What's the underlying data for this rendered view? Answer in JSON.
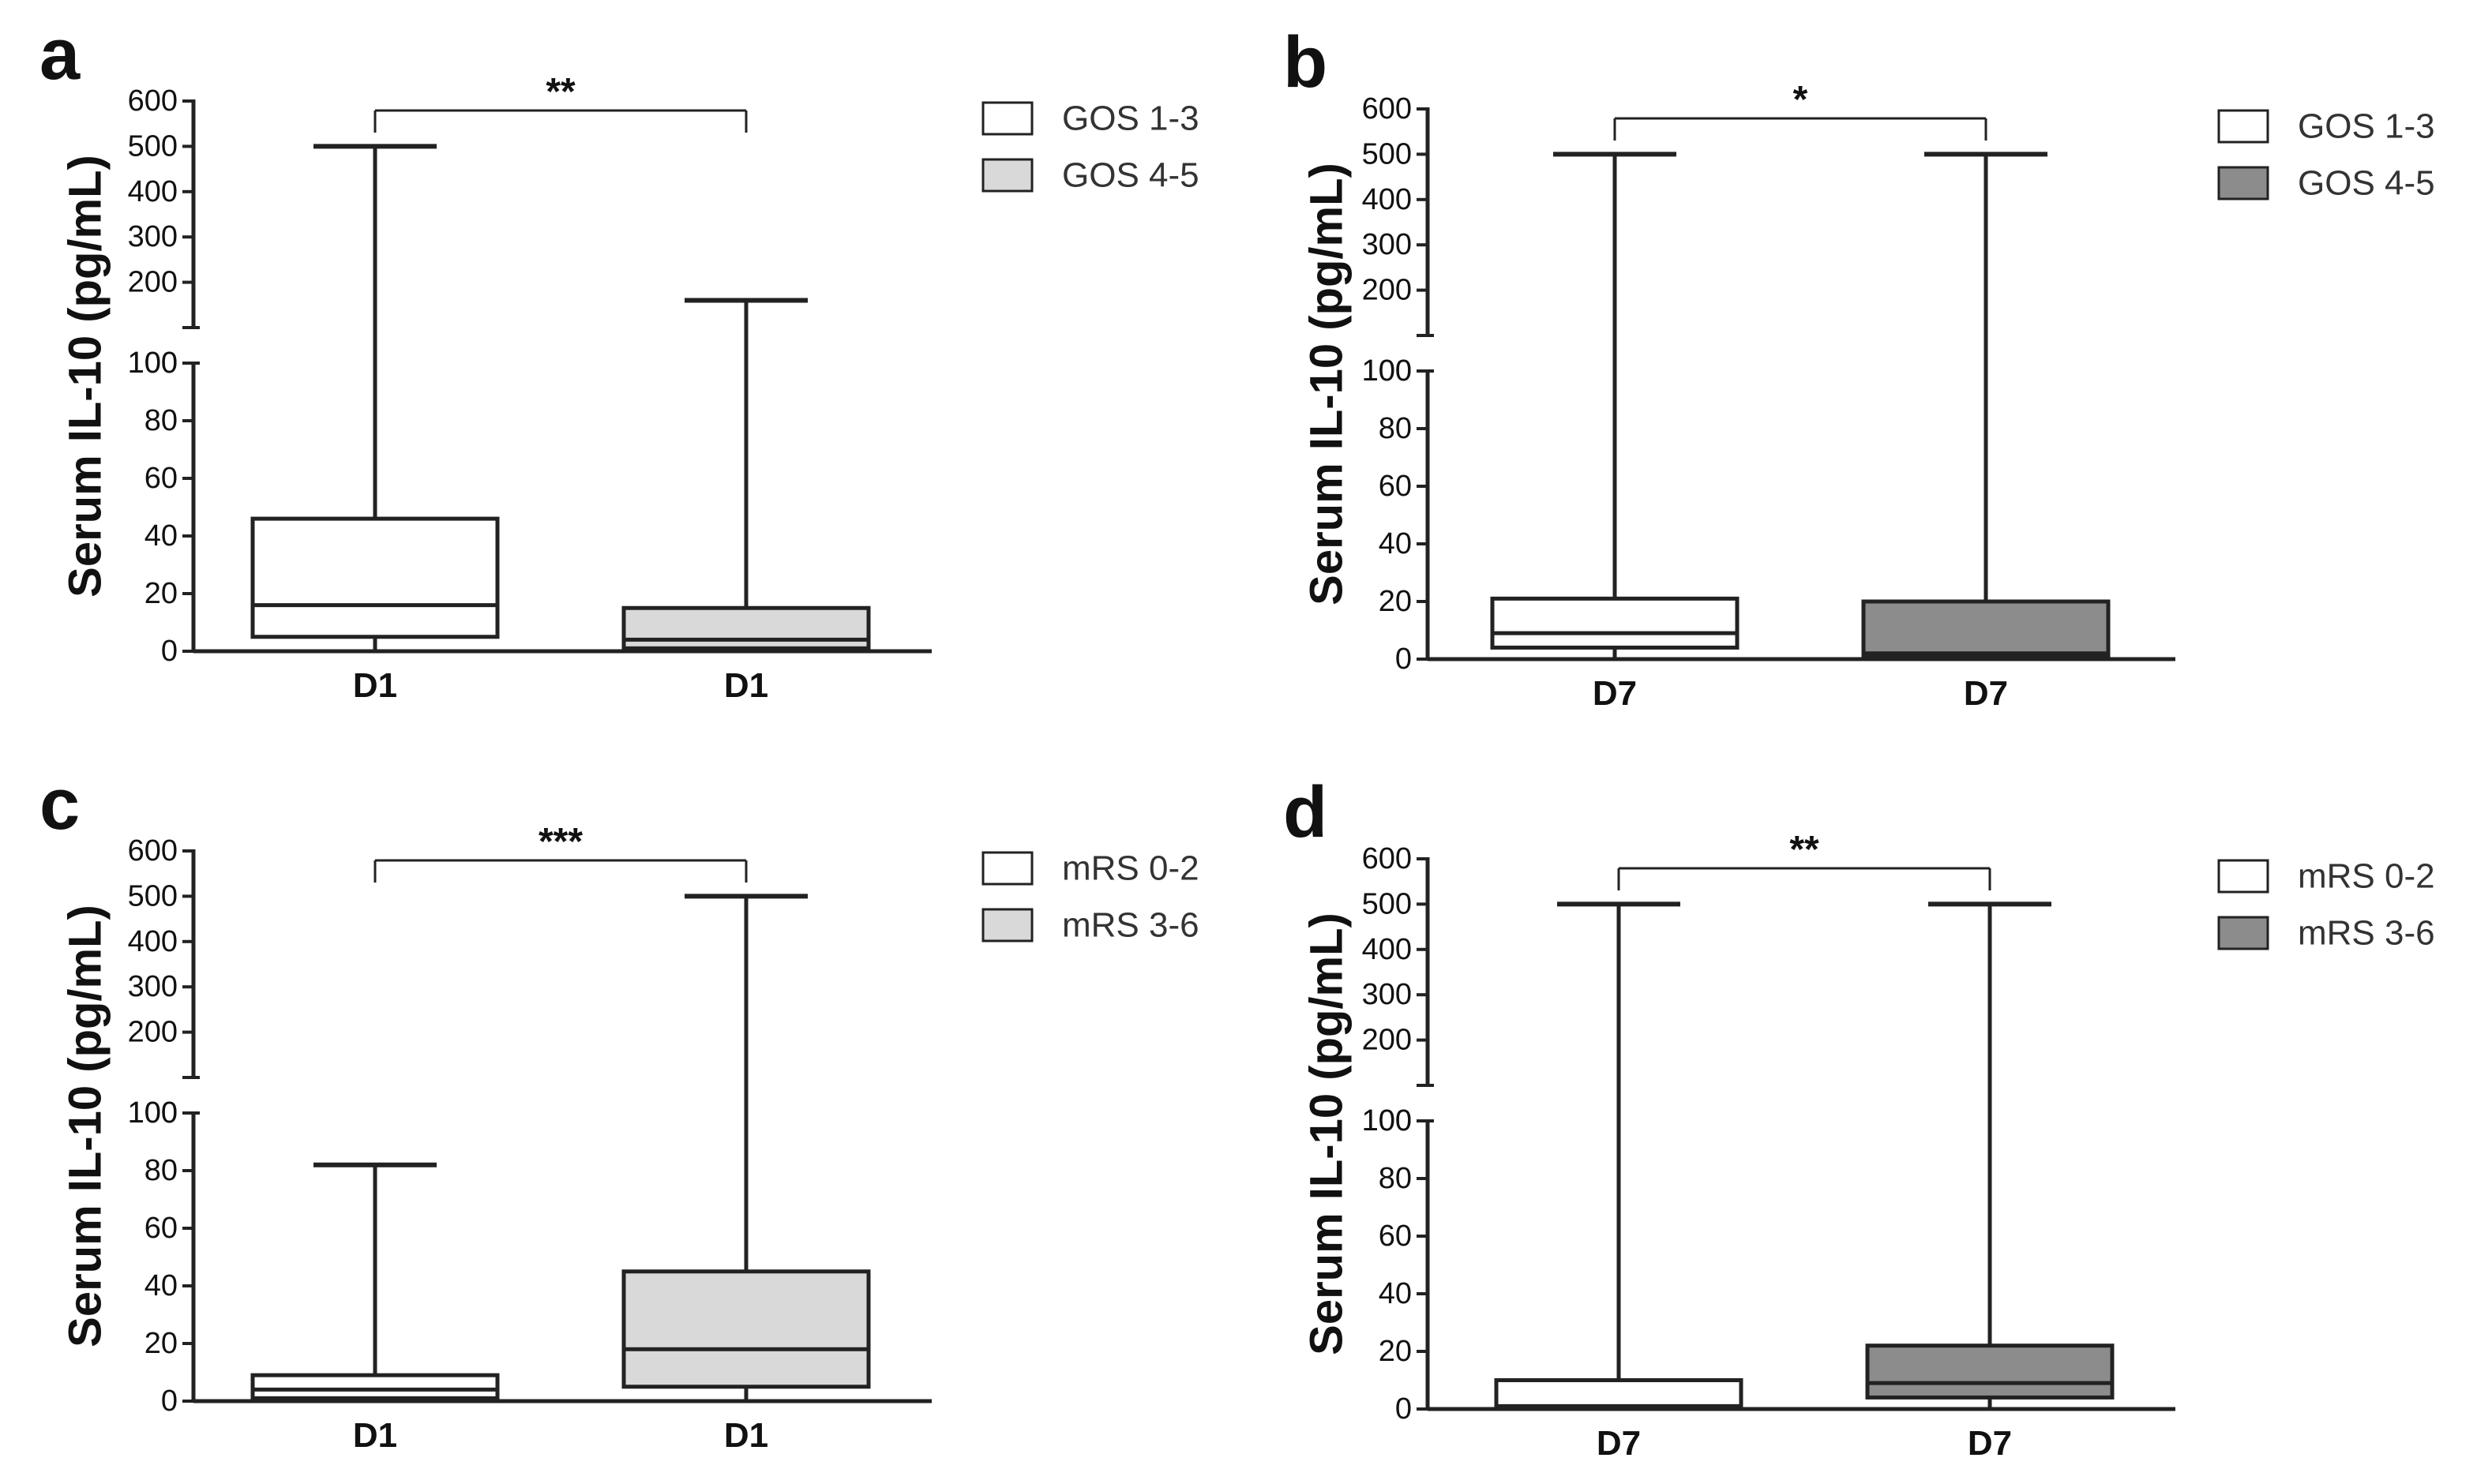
{
  "chart_data": [
    {
      "panel": "a",
      "type": "box",
      "ylabel": "Serum IL-10 (pg/mL)",
      "y_axis": {
        "broken": true,
        "lower_range": [
          0,
          100
        ],
        "lower_ticks": [
          0,
          20,
          40,
          60,
          80,
          100
        ],
        "upper_range": [
          100,
          600
        ],
        "upper_ticks": [
          100,
          200,
          300,
          400,
          500,
          600
        ]
      },
      "legend": [
        {
          "label": "GOS 1-3",
          "color": "#ffffff"
        },
        {
          "label": "GOS 4-5",
          "color": "#d9d9d9"
        }
      ],
      "significance": "**",
      "boxes": [
        {
          "category": "D1",
          "group": "GOS 1-3",
          "fill": "#ffffff",
          "min": 0,
          "q1": 5,
          "median": 16,
          "q3": 46,
          "max": 500
        },
        {
          "category": "D1",
          "group": "GOS 4-5",
          "fill": "#d9d9d9",
          "min": 0,
          "q1": 1,
          "median": 4,
          "q3": 15,
          "max": 160
        }
      ]
    },
    {
      "panel": "b",
      "type": "box",
      "ylabel": "Serum IL-10 (pg/mL)",
      "y_axis": {
        "broken": true,
        "lower_range": [
          0,
          100
        ],
        "lower_ticks": [
          0,
          20,
          40,
          60,
          80,
          100
        ],
        "upper_range": [
          100,
          600
        ],
        "upper_ticks": [
          100,
          200,
          300,
          400,
          500,
          600
        ]
      },
      "legend": [
        {
          "label": "GOS 1-3",
          "color": "#ffffff"
        },
        {
          "label": "GOS 4-5",
          "color": "#8c8c8c"
        }
      ],
      "significance": "*",
      "boxes": [
        {
          "category": "D7",
          "group": "GOS 1-3",
          "fill": "#ffffff",
          "min": 0,
          "q1": 4,
          "median": 9,
          "q3": 21,
          "max": 500
        },
        {
          "category": "D7",
          "group": "GOS 4-5",
          "fill": "#8c8c8c",
          "min": 0,
          "q1": 1,
          "median": 2,
          "q3": 20,
          "max": 500
        }
      ]
    },
    {
      "panel": "c",
      "type": "box",
      "ylabel": "Serum IL-10 (pg/mL)",
      "y_axis": {
        "broken": true,
        "lower_range": [
          0,
          100
        ],
        "lower_ticks": [
          0,
          20,
          40,
          60,
          80,
          100
        ],
        "upper_range": [
          100,
          600
        ],
        "upper_ticks": [
          100,
          200,
          300,
          400,
          500,
          600
        ]
      },
      "legend": [
        {
          "label": "mRS 0-2",
          "color": "#ffffff"
        },
        {
          "label": "mRS 3-6",
          "color": "#d9d9d9"
        }
      ],
      "significance": "***",
      "boxes": [
        {
          "category": "D1",
          "group": "mRS 0-2",
          "fill": "#ffffff",
          "min": 0,
          "q1": 1,
          "median": 4,
          "q3": 9,
          "max": 82
        },
        {
          "category": "D1",
          "group": "mRS 3-6",
          "fill": "#d9d9d9",
          "min": 0,
          "q1": 5,
          "median": 18,
          "q3": 45,
          "max": 500
        }
      ]
    },
    {
      "panel": "d",
      "type": "box",
      "ylabel": "Serum IL-10 (pg/mL)",
      "y_axis": {
        "broken": true,
        "lower_range": [
          0,
          100
        ],
        "lower_ticks": [
          0,
          20,
          40,
          60,
          80,
          100
        ],
        "upper_range": [
          100,
          600
        ],
        "upper_ticks": [
          100,
          200,
          300,
          400,
          500,
          600
        ]
      },
      "legend": [
        {
          "label": "mRS 0-2",
          "color": "#ffffff"
        },
        {
          "label": "mRS 3-6",
          "color": "#8c8c8c"
        }
      ],
      "significance": "**",
      "boxes": [
        {
          "category": "D7",
          "group": "mRS 0-2",
          "fill": "#ffffff",
          "min": 0,
          "q1": 0.5,
          "median": 1,
          "q3": 10,
          "max": 500
        },
        {
          "category": "D7",
          "group": "mRS 3-6",
          "fill": "#8c8c8c",
          "min": 0,
          "q1": 4,
          "median": 9,
          "q3": 22,
          "max": 500
        }
      ]
    }
  ]
}
